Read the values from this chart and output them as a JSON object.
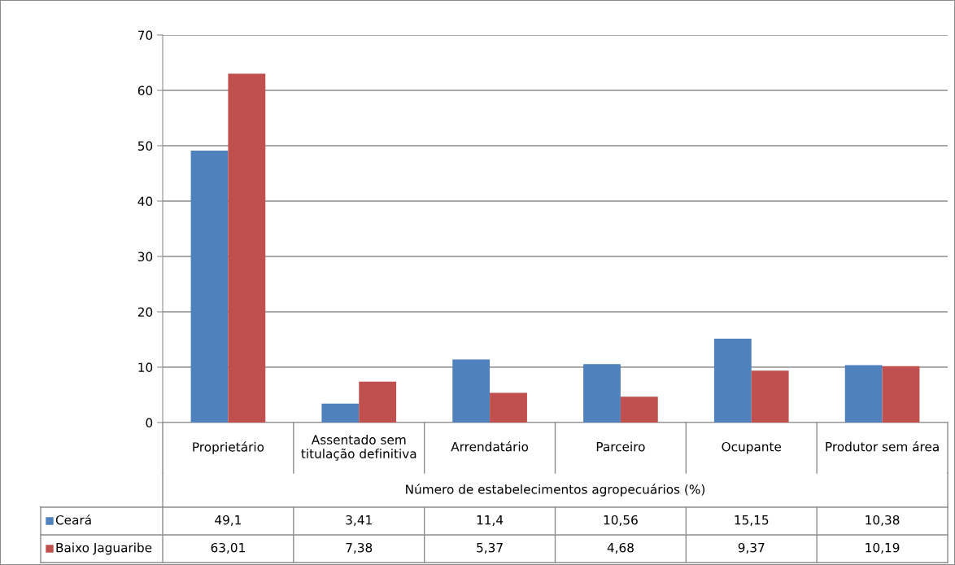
{
  "chart_data": {
    "type": "bar",
    "xlabel": "Número de estabelecimentos agropecuários (%)",
    "categories": [
      "Proprietário",
      "Assentado sem\ntitulação definitiva",
      "Arrendatário",
      "Parceiro",
      "Ocupante",
      "Produtor sem área"
    ],
    "series": [
      {
        "name": "Ceará",
        "color": "#4f81bd",
        "values": [
          49.1,
          3.41,
          11.4,
          10.56,
          15.15,
          10.38
        ],
        "value_labels": [
          "49,1",
          "3,41",
          "11,4",
          "10,56",
          "15,15",
          "10,38"
        ]
      },
      {
        "name": "Baixo Jaguaribe",
        "color": "#c0504d",
        "values": [
          63.01,
          7.38,
          5.37,
          4.68,
          9.37,
          10.19
        ],
        "value_labels": [
          "63,01",
          "7,38",
          "5,37",
          "4,68",
          "9,37",
          "10,19"
        ]
      }
    ],
    "ylim": [
      0,
      70
    ],
    "yticks": [
      0,
      10,
      20,
      30,
      40,
      50,
      60,
      70
    ],
    "grid": "y",
    "legend": "bottom left"
  }
}
